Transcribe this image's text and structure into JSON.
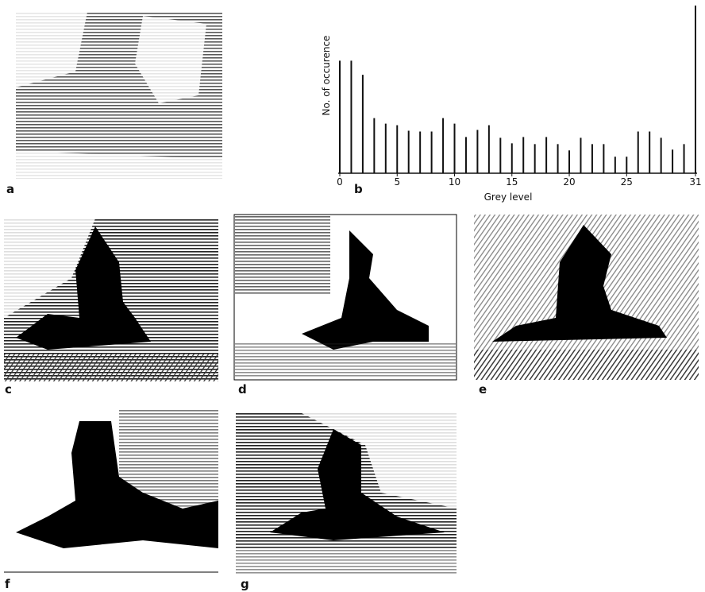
{
  "chart_data": {
    "type": "bar",
    "xlabel": "Grey level",
    "ylabel": "No. of occurence",
    "x": [
      0,
      1,
      2,
      3,
      4,
      5,
      6,
      7,
      8,
      9,
      10,
      11,
      12,
      13,
      14,
      15,
      16,
      17,
      18,
      19,
      20,
      21,
      22,
      23,
      24,
      25,
      26,
      27,
      28,
      29,
      30,
      31
    ],
    "values": [
      143,
      143,
      125,
      70,
      63,
      61,
      54,
      53,
      53,
      70,
      63,
      46,
      55,
      61,
      45,
      38,
      46,
      37,
      46,
      37,
      29,
      45,
      37,
      37,
      21,
      21,
      53,
      53,
      45,
      30,
      37,
      213
    ],
    "color": "#111111",
    "xlim": [
      0,
      31
    ],
    "xticks": [
      0,
      5,
      10,
      15,
      20,
      25,
      31
    ],
    "ylim": [
      0,
      215
    ]
  },
  "panels": {
    "a": "a",
    "b": "b",
    "c": "c",
    "d": "d",
    "e": "e",
    "f": "f",
    "g": "g"
  }
}
